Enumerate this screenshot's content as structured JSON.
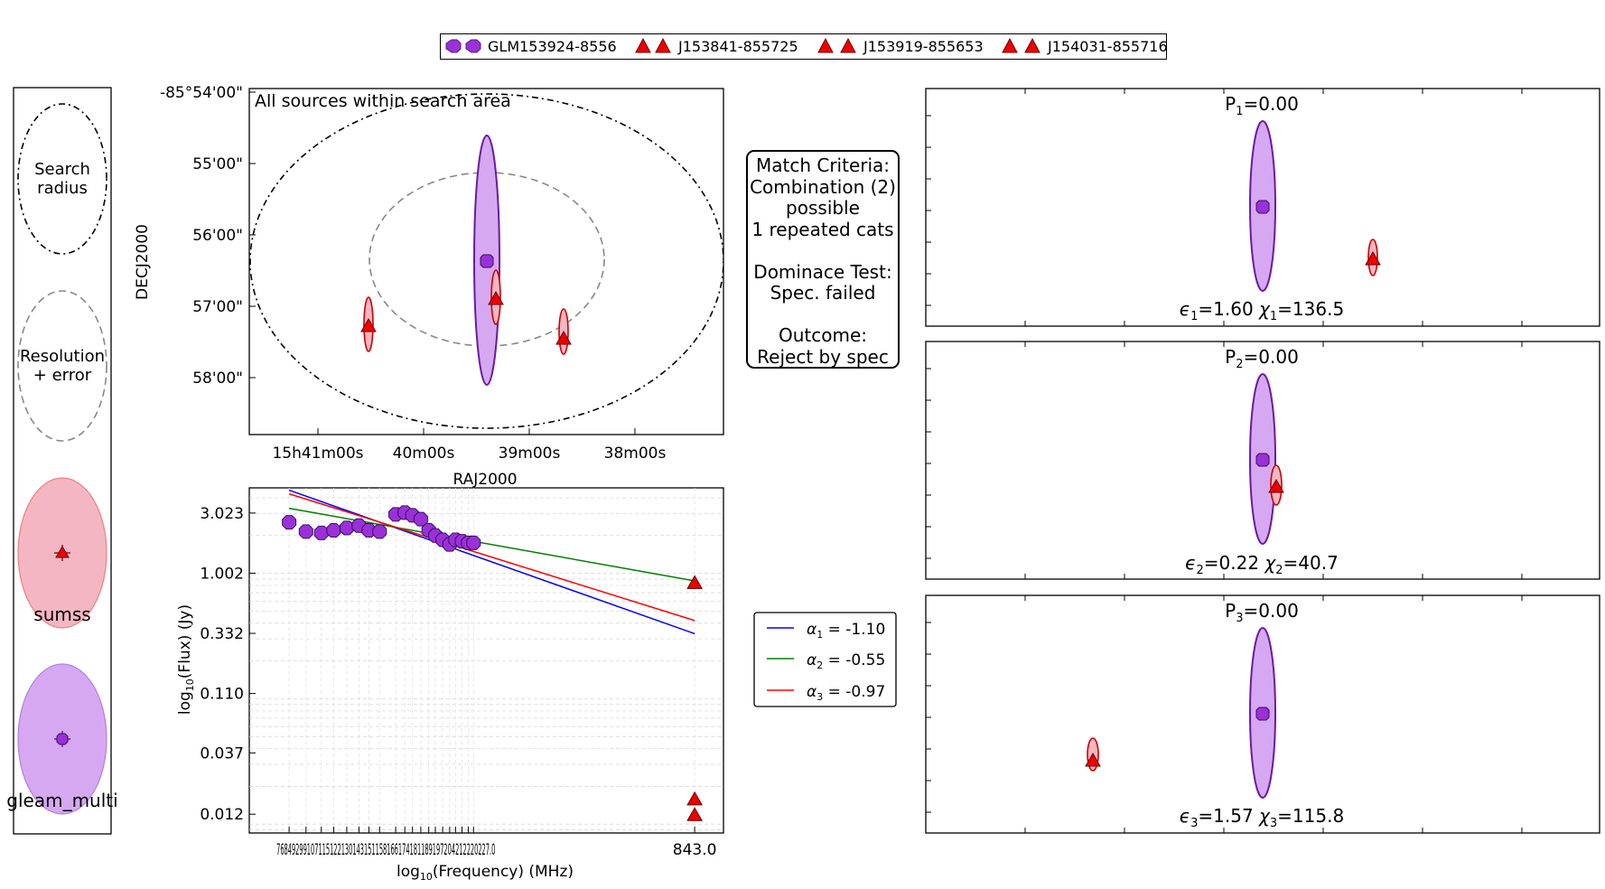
{
  "legend_top": {
    "entries": [
      {
        "label": "GLM153924-8556",
        "marker": "octagon",
        "color": "#9b30d9"
      },
      {
        "label": "J153841-855725",
        "marker": "triangle",
        "color": "#ee0000"
      },
      {
        "label": "J153919-855653",
        "marker": "triangle",
        "color": "#ee0000"
      },
      {
        "label": "J154031-855716",
        "marker": "triangle",
        "color": "#ee0000"
      }
    ]
  },
  "key_panel": {
    "search_label_1": "Search",
    "search_label_2": "radius",
    "resolution_label_1": "Resolution",
    "resolution_label_2": "+ error",
    "sumss_label": "sumss",
    "gleam_label": "gleam_multi",
    "sumss_color": "#f4b6c2",
    "gleam_color": "#d6a8f2"
  },
  "sky_plot": {
    "title": "All sources within search area",
    "xlabel": "RAJ2000",
    "ylabel": "DECJ2000",
    "ra_ticks": [
      "15h41m00s",
      "40m00s",
      "39m00s",
      "38m00s"
    ],
    "dec_ticks": [
      "-85°54'00\"",
      "55'00\"",
      "56'00\"",
      "57'00\"",
      "58'00\""
    ]
  },
  "criteria": {
    "lines": [
      "Match Criteria:",
      "Combination (2)",
      "possible",
      "1 repeated cats",
      "",
      "Dominace Test:",
      "Spec. failed",
      "",
      "Outcome:",
      "Reject by spec"
    ]
  },
  "chart_data": {
    "type": "scatter",
    "xlabel": "log10(Frequency) (MHz)",
    "ylabel": "log10(Flux) (Jy)",
    "y_ticks": [
      "3.023",
      "1.002",
      "0.332",
      "0.110",
      "0.037",
      "0.012"
    ],
    "x_tick_labels": [
      "76",
      "84",
      "92",
      "99",
      "107",
      "115",
      "122",
      "130",
      "143",
      "151",
      "158",
      "166",
      "174",
      "181",
      "189",
      "197",
      "204",
      "212",
      "220",
      "227",
      "843.0"
    ],
    "x_tick_display": "76849299107115122130143151158166174181189197204212220227.0",
    "gleam_points": [
      {
        "freq": 76,
        "flux": 2.55
      },
      {
        "freq": 84,
        "flux": 2.15
      },
      {
        "freq": 92,
        "flux": 2.1
      },
      {
        "freq": 99,
        "flux": 2.2
      },
      {
        "freq": 107,
        "flux": 2.3
      },
      {
        "freq": 115,
        "flux": 2.4
      },
      {
        "freq": 122,
        "flux": 2.2
      },
      {
        "freq": 130,
        "flux": 2.15
      },
      {
        "freq": 143,
        "flux": 2.95
      },
      {
        "freq": 151,
        "flux": 3.05
      },
      {
        "freq": 158,
        "flux": 2.9
      },
      {
        "freq": 166,
        "flux": 2.7
      },
      {
        "freq": 174,
        "flux": 2.2
      },
      {
        "freq": 181,
        "flux": 2.0
      },
      {
        "freq": 189,
        "flux": 1.85
      },
      {
        "freq": 197,
        "flux": 1.7
      },
      {
        "freq": 204,
        "flux": 1.85
      },
      {
        "freq": 212,
        "flux": 1.8
      },
      {
        "freq": 220,
        "flux": 1.75
      },
      {
        "freq": 227,
        "flux": 1.75
      }
    ],
    "sumss_points": [
      {
        "freq": 843,
        "flux": 0.85
      },
      {
        "freq": 843,
        "flux": 0.016
      },
      {
        "freq": 843,
        "flux": 0.012
      }
    ],
    "series": [
      {
        "name": "α1 = -1.10",
        "alpha": -1.1,
        "color": "#0000ff",
        "start": [
          76,
          4.6
        ],
        "end": [
          843,
          0.33
        ]
      },
      {
        "name": "α2 = -0.55",
        "alpha": -0.55,
        "color": "#008000",
        "start": [
          76,
          3.3
        ],
        "end": [
          843,
          0.87
        ]
      },
      {
        "name": "α3 = -0.97",
        "alpha": -0.97,
        "color": "#ff0000",
        "start": [
          76,
          4.3
        ],
        "end": [
          843,
          0.42
        ]
      }
    ],
    "legend": [
      {
        "sym": "α",
        "sub": "1",
        "rest": " = -1.10",
        "color": "#0000ff"
      },
      {
        "sym": "α",
        "sub": "2",
        "rest": " = -0.55",
        "color": "#008000"
      },
      {
        "sym": "α",
        "sub": "3",
        "rest": " = -0.97",
        "color": "#ff0000"
      }
    ]
  },
  "combo_panels": [
    {
      "p_sym": "P",
      "p_sub": "1",
      "p_val": "=0.00",
      "eps_sym": "ϵ",
      "eps_sub": "1",
      "eps_val": "=1.60",
      "chi_sym": "χ",
      "chi_sub": "1",
      "chi_val": "=136.5"
    },
    {
      "p_sym": "P",
      "p_sub": "2",
      "p_val": "=0.00",
      "eps_sym": "ϵ",
      "eps_sub": "2",
      "eps_val": "=0.22",
      "chi_sym": "χ",
      "chi_sub": "2",
      "chi_val": "=40.7"
    },
    {
      "p_sym": "P",
      "p_sub": "3",
      "p_val": "=0.00",
      "eps_sym": "ϵ",
      "eps_sub": "3",
      "eps_val": "=1.57",
      "chi_sym": "χ",
      "chi_sub": "3",
      "chi_val": "=115.8"
    }
  ]
}
